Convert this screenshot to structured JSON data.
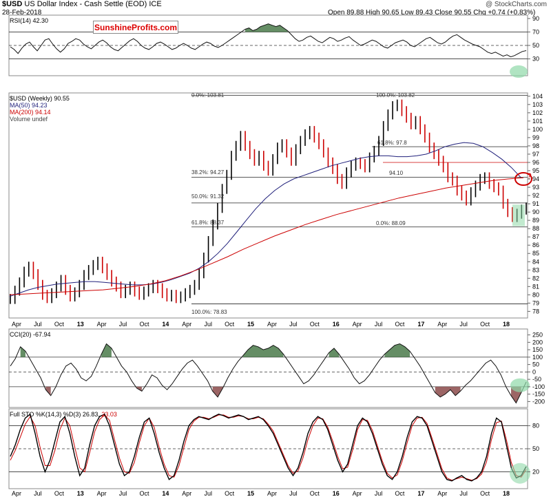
{
  "header": {
    "symbol": "$USD",
    "name": "US Dollar Index - Cash Settle (EOD)",
    "exchange": "ICE",
    "date": "28-Feb-2018",
    "ohlc": "Open 89.88  High 90.65  Low 89.43  Close 90.55  Chg +0.74 (+0.83%)",
    "credit": "@ StockCharts.com",
    "watermark": "SunshineProfits.com"
  },
  "colors": {
    "price_up": "#000000",
    "price_down": "#cc0000",
    "ma50": "#1f1f7a",
    "ma200": "#cc0000",
    "positive_fill": "#4a7a4a",
    "negative_fill": "#8b4a4a",
    "highlight": "#8fd9a8",
    "circle": "#cc0000"
  },
  "legends": {
    "rsi": "RSI(14) 42.30",
    "price": "$USD (Weekly) 90.55",
    "ma50": "MA(50) 94.23",
    "ma200": "MA(200) 94.14",
    "volume": "Volume undef",
    "cci": "CCI(20) -67.94",
    "sto_a": "Full STO %K(14,3) %D(3) 26.83,",
    "sto_b": "23.03"
  },
  "chart_data": [
    {
      "type": "line",
      "name": "RSI panel",
      "title": "RSI(14) 42.30",
      "y_ticks": [
        90,
        70,
        50,
        30
      ],
      "ylim": [
        5,
        95
      ],
      "hlines": [
        70,
        50,
        30
      ],
      "x_labels": [],
      "values": [
        48,
        44,
        38,
        46,
        52,
        55,
        48,
        42,
        50,
        58,
        60,
        52,
        45,
        40,
        45,
        53,
        56,
        60,
        58,
        52,
        48,
        45,
        50,
        55,
        58,
        54,
        48,
        44,
        42,
        47,
        52,
        57,
        60,
        56,
        50,
        46,
        44,
        48,
        53,
        55,
        52,
        48,
        44,
        46,
        50,
        53,
        50,
        46,
        44,
        48,
        52,
        55,
        53,
        49,
        47,
        50,
        54,
        58,
        62,
        66,
        70,
        74,
        76,
        72,
        74,
        78,
        80,
        82,
        80,
        78,
        80,
        76,
        72,
        66,
        60,
        56,
        58,
        62,
        64,
        60,
        56,
        54,
        58,
        62,
        60,
        56,
        58,
        61,
        63,
        58,
        54,
        50,
        52,
        55,
        58,
        56,
        52,
        48,
        46,
        50,
        54,
        56,
        58,
        55,
        50,
        48,
        52,
        56,
        60,
        62,
        58,
        54,
        52,
        55,
        60,
        64,
        66,
        62,
        58,
        55,
        52,
        50,
        48,
        44,
        40,
        38,
        40,
        37,
        34,
        36,
        33,
        35,
        38,
        41,
        42.3
      ]
    },
    {
      "type": "line",
      "name": "Price panel",
      "title": "$USD (Weekly) 90.55",
      "series": [
        {
          "name": "$USD (Weekly) 90.55",
          "values": [
            79.5,
            80.5,
            81.5,
            82.8,
            83.4,
            82.5,
            81.2,
            80.0,
            79.6,
            80.2,
            81.0,
            81.8,
            80.6,
            79.8,
            80.3,
            81.2,
            82.4,
            83.0,
            83.6,
            84.0,
            83.2,
            82.4,
            81.6,
            81.0,
            80.2,
            80.6,
            81.0,
            80.4,
            80.0,
            80.4,
            80.8,
            81.2,
            80.8,
            80.2,
            79.8,
            80.0,
            79.6,
            79.8,
            80.2,
            80.6,
            81.2,
            82.6,
            84.5,
            86.5,
            88.5,
            90.5,
            92.8,
            94.5,
            96.8,
            98.0,
            99.2,
            98.0,
            97.0,
            96.2,
            96.8,
            95.6,
            95.0,
            96.4,
            97.8,
            98.2,
            97.2,
            96.2,
            97.6,
            98.6,
            99.4,
            99.8,
            99.0,
            98.2,
            97.2,
            96.0,
            95.2,
            94.0,
            93.4,
            94.8,
            95.6,
            96.0,
            95.8,
            95.4,
            96.6,
            97.4,
            98.6,
            100.4,
            101.8,
            102.8,
            103.0,
            102.2,
            101.4,
            100.6,
            101.0,
            100.0,
            99.0,
            97.8,
            97.0,
            96.2,
            95.4,
            94.2,
            93.8,
            92.6,
            92.0,
            91.4,
            92.4,
            93.2,
            94.0,
            94.2,
            93.4,
            93.0,
            92.6,
            91.0,
            90.0,
            89.4,
            89.8,
            90.3,
            90.55
          ]
        },
        {
          "name": "MA(50) 94.23",
          "values": [
            79.8,
            80.2,
            80.6,
            80.9,
            81.1,
            81.3,
            81.4,
            81.5,
            81.6,
            81.6,
            81.5,
            81.4,
            81.3,
            81.2,
            81.2,
            81.3,
            81.5,
            81.8,
            82.2,
            82.6,
            83.2,
            84.0,
            85.0,
            86.2,
            87.6,
            89.0,
            90.4,
            91.6,
            92.6,
            93.4,
            94.0,
            94.4,
            94.8,
            95.2,
            95.6,
            95.9,
            96.2,
            96.5,
            96.7,
            96.8,
            96.8,
            96.7,
            96.7,
            96.8,
            97.0,
            97.4,
            97.9,
            98.2,
            98.4,
            98.3,
            97.9,
            97.2,
            96.4,
            95.4,
            94.2
          ]
        },
        {
          "name": "MA(200) 94.14",
          "values": [
            80.0,
            80.1,
            80.2,
            80.3,
            80.4,
            80.5,
            80.6,
            80.8,
            81.0,
            81.3,
            81.7,
            82.3,
            83.0,
            83.8,
            84.6,
            85.5,
            86.3,
            87.1,
            87.8,
            88.5,
            89.1,
            89.7,
            90.2,
            90.7,
            91.2,
            91.7,
            92.1,
            92.5,
            92.9,
            93.2,
            93.5,
            93.8,
            94.0,
            94.14
          ]
        }
      ],
      "y_ticks": [
        104,
        103,
        102,
        101,
        100,
        99,
        98,
        97,
        96,
        95,
        94,
        93,
        92,
        91,
        90,
        89,
        88,
        87,
        86,
        85,
        84,
        83,
        82,
        81,
        80,
        79,
        78
      ],
      "ylim": [
        77.2,
        104.4
      ],
      "x_labels": [
        "Apr",
        "Jul",
        "Oct",
        "13",
        "Apr",
        "Jul",
        "Oct",
        "14",
        "Apr",
        "Jul",
        "Oct",
        "15",
        "Apr",
        "Jul",
        "Oct",
        "16",
        "Apr",
        "Jul",
        "Oct",
        "17",
        "Apr",
        "Jul",
        "Oct",
        "18"
      ],
      "annotations": [
        {
          "text": "0.0%: 103.81",
          "y": 104.1
        },
        {
          "text": "100.0%: 103.82",
          "y": 104.1
        },
        {
          "text": "61.8%: 97.8",
          "y": 97.9
        },
        {
          "text": "38.2%: 94.27",
          "y": 94.2
        },
        {
          "text": "94.10",
          "y": 94.2
        },
        {
          "text": "50.0%: 91.32",
          "y": 91.1
        },
        {
          "text": "61.8%: 88.37",
          "y": 88.2
        },
        {
          "text": "0.0%: 88.09",
          "y": 88.1
        },
        {
          "text": "100.0%: 78.83",
          "y": 78.9
        },
        {
          "text": "?",
          "y": 94.0
        }
      ]
    },
    {
      "type": "area",
      "name": "CCI panel",
      "title": "CCI(20) -67.94",
      "y_ticks": [
        250,
        200,
        150,
        100,
        50,
        0,
        -50,
        -100,
        -150,
        -200
      ],
      "ylim": [
        -240,
        290
      ],
      "hlines": [
        100,
        0,
        -100
      ],
      "values": [
        40,
        90,
        170,
        140,
        80,
        20,
        -40,
        -120,
        -160,
        -100,
        -20,
        40,
        60,
        20,
        -40,
        -60,
        -30,
        40,
        120,
        190,
        160,
        100,
        40,
        0,
        -60,
        -110,
        -130,
        -80,
        -20,
        -40,
        -90,
        -120,
        -80,
        -30,
        20,
        60,
        80,
        40,
        -10,
        -60,
        -130,
        -170,
        -110,
        -40,
        20,
        70,
        110,
        150,
        180,
        170,
        150,
        160,
        180,
        160,
        120,
        70,
        20,
        -30,
        -80,
        -60,
        -20,
        30,
        80,
        130,
        160,
        120,
        70,
        20,
        -40,
        -80,
        -60,
        -20,
        30,
        80,
        120,
        150,
        180,
        190,
        170,
        140,
        90,
        40,
        -20,
        -80,
        -140,
        -170,
        -150,
        -120,
        -160,
        -130,
        -90,
        -60,
        -20,
        20,
        60,
        80,
        40,
        -20,
        -100,
        -160,
        -210,
        -140,
        -67.94
      ]
    },
    {
      "type": "line",
      "name": "Stochastic panel",
      "title": "Full STO %K(14,3) %D(3) 26.83, 23.03",
      "y_ticks": [
        80,
        50,
        20
      ],
      "ylim": [
        -2,
        102
      ],
      "hlines": [
        80,
        50,
        20
      ],
      "series": [
        {
          "name": "%K(14,3)",
          "values": [
            40,
            55,
            75,
            90,
            95,
            70,
            40,
            20,
            35,
            60,
            85,
            92,
            70,
            40,
            15,
            25,
            55,
            80,
            92,
            95,
            80,
            55,
            30,
            15,
            20,
            40,
            65,
            85,
            90,
            70,
            45,
            25,
            10,
            15,
            35,
            60,
            80,
            88,
            92,
            90,
            88,
            92,
            95,
            93,
            90,
            92,
            94,
            92,
            88,
            90,
            92,
            88,
            80,
            70,
            55,
            40,
            25,
            15,
            25,
            45,
            70,
            85,
            92,
            88,
            75,
            55,
            35,
            20,
            30,
            55,
            80,
            90,
            85,
            70,
            50,
            30,
            15,
            10,
            20,
            40,
            65,
            85,
            92,
            90,
            80,
            60,
            40,
            20,
            10,
            8,
            12,
            15,
            10,
            8,
            12,
            20,
            40,
            70,
            90,
            85,
            55,
            25,
            12,
            15,
            26.83
          ]
        },
        {
          "name": "%D(3)",
          "values": [
            35,
            48,
            65,
            82,
            92,
            80,
            52,
            28,
            28,
            48,
            75,
            90,
            80,
            52,
            25,
            20,
            45,
            72,
            88,
            94,
            87,
            62,
            38,
            20,
            18,
            32,
            58,
            80,
            90,
            78,
            52,
            30,
            15,
            13,
            28,
            52,
            75,
            86,
            91,
            91,
            89,
            91,
            94,
            94,
            91,
            91,
            93,
            92,
            89,
            89,
            91,
            89,
            82,
            73,
            58,
            43,
            28,
            18,
            21,
            38,
            62,
            80,
            90,
            89,
            78,
            60,
            40,
            24,
            26,
            48,
            75,
            88,
            87,
            74,
            54,
            34,
            18,
            12,
            16,
            34,
            58,
            80,
            90,
            91,
            83,
            64,
            44,
            24,
            12,
            9,
            11,
            13,
            11,
            9,
            11,
            17,
            33,
            62,
            84,
            86,
            62,
            32,
            15,
            13,
            23.03
          ]
        }
      ],
      "x_labels": [
        "Apr",
        "Jul",
        "Oct",
        "13",
        "Apr",
        "Jul",
        "Oct",
        "14",
        "Apr",
        "Jul",
        "Oct",
        "15",
        "Apr",
        "Jul",
        "Oct",
        "16",
        "Apr",
        "Jul",
        "Oct",
        "17",
        "Apr",
        "Jul",
        "Oct",
        "18"
      ]
    }
  ]
}
